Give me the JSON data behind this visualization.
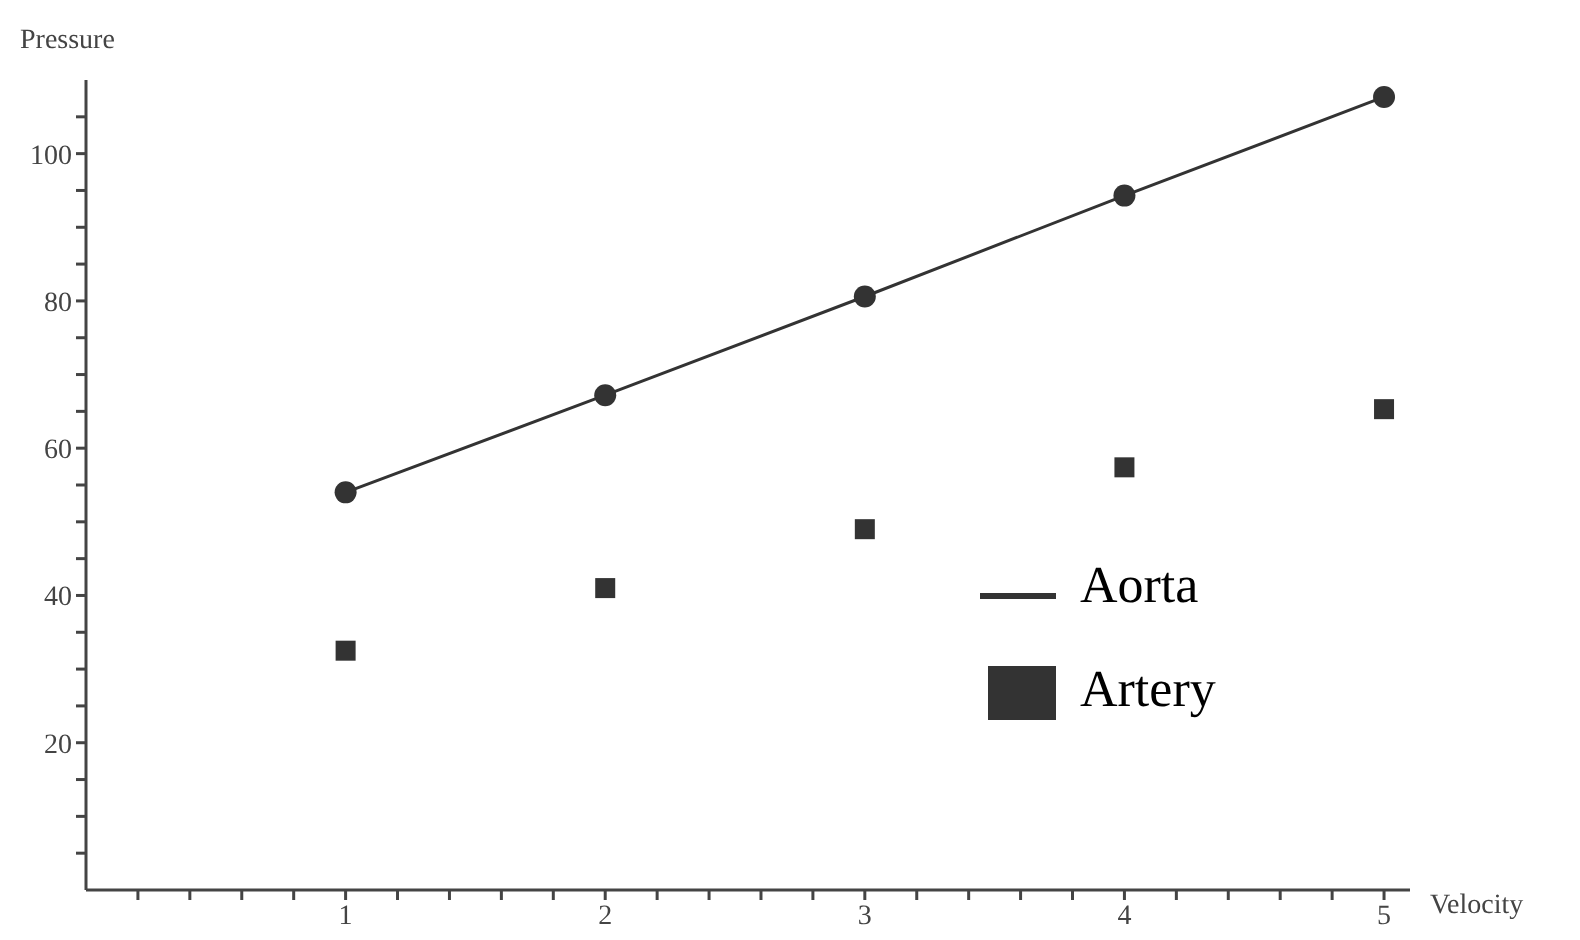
{
  "chart_data": {
    "type": "line",
    "xlabel": "Velocity",
    "ylabel": "Pressure",
    "x": [
      1,
      2,
      3,
      4,
      5
    ],
    "series": [
      {
        "name": "Aorta",
        "color": "#333333",
        "marker": "circle",
        "line_style": "solid",
        "values": [
          54,
          67.2,
          80.6,
          94.3,
          107.7
        ]
      },
      {
        "name": "Artery",
        "type": "scatter",
        "color": "#333333",
        "marker": "square",
        "values": [
          32.5,
          41,
          49,
          57.4,
          65.3
        ]
      }
    ],
    "xlim": [
      0,
      5.1
    ],
    "xticks": [
      {
        "value": 0.2,
        "label": null
      },
      {
        "value": 0.4,
        "label": null
      },
      {
        "value": 0.6,
        "label": null
      },
      {
        "value": 0.8,
        "label": null
      },
      1,
      {
        "value": 1.2,
        "label": null
      },
      {
        "value": 1.4,
        "label": null
      },
      {
        "value": 1.6,
        "label": null
      },
      {
        "value": 1.8,
        "label": null
      },
      2,
      {
        "value": 2.2,
        "label": null
      },
      {
        "value": 2.4,
        "label": null
      },
      {
        "value": 2.6,
        "label": null
      },
      {
        "value": 2.8,
        "label": null
      },
      3,
      {
        "value": 3.2,
        "label": null
      },
      {
        "value": 3.4,
        "label": null
      },
      {
        "value": 3.6,
        "label": null
      },
      {
        "value": 3.8,
        "label": null
      },
      4,
      {
        "value": 4.2,
        "label": null
      },
      {
        "value": 4.4,
        "label": null
      },
      {
        "value": 4.6,
        "label": null
      },
      {
        "value": 4.8,
        "label": null
      },
      5
    ],
    "ylim": [
      0,
      110
    ],
    "yticks": [
      {
        "value": 5,
        "label": null
      },
      {
        "value": 10,
        "label": null
      },
      {
        "value": 15,
        "label": null
      },
      20,
      {
        "value": 25,
        "label": null
      },
      {
        "value": 30,
        "label": null
      },
      {
        "value": 35,
        "label": null
      },
      40,
      {
        "value": 45,
        "label": null
      },
      {
        "value": 50,
        "label": null
      },
      {
        "value": 55,
        "label": null
      },
      60,
      {
        "value": 65,
        "label": null
      },
      {
        "value": 70,
        "label": null
      },
      {
        "value": 75,
        "label": null
      },
      80,
      {
        "value": 85,
        "label": null
      },
      {
        "value": 90,
        "label": null
      },
      {
        "value": 95,
        "label": null
      },
      100,
      {
        "value": 105,
        "label": null
      }
    ],
    "grid": false,
    "legend": "bottom right"
  }
}
